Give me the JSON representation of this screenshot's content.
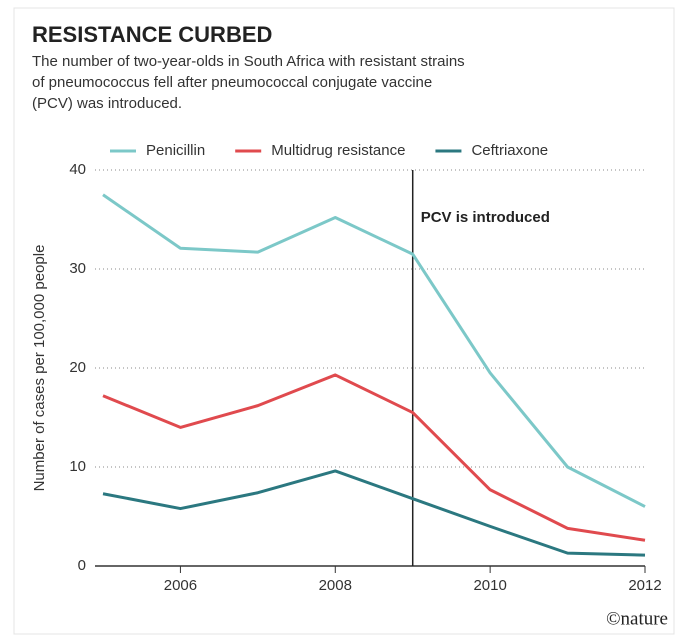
{
  "chart_data": {
    "type": "line",
    "title": "RESISTANCE CURBED",
    "subtitle": [
      "The number of two-year-olds in South Africa with resistant strains",
      "of pneumococcus fell after pneumococcal conjugate vaccine",
      "(PCV) was introduced."
    ],
    "y_label": "Number of cases per 100,000 people",
    "x": [
      2005,
      2006,
      2007,
      2008,
      2009,
      2010,
      2011,
      2012
    ],
    "xlim": [
      2005,
      2012
    ],
    "xticks": [
      2006,
      2008,
      2010,
      2012
    ],
    "ylim": [
      0,
      40
    ],
    "yticks": [
      0,
      10,
      20,
      30,
      40
    ],
    "grid": true,
    "series": [
      {
        "name": "Penicillin",
        "color": "#7cc8c8",
        "values": [
          37.5,
          32.1,
          31.7,
          35.2,
          31.5,
          19.5,
          10,
          6
        ]
      },
      {
        "name": "Multidrug resistance",
        "color": "#e04a4e",
        "values": [
          17.2,
          14,
          16.2,
          19.3,
          15.5,
          7.7,
          3.8,
          2.6
        ]
      },
      {
        "name": "Ceftriaxone",
        "color": "#2b7880",
        "values": [
          7.3,
          5.8,
          7.4,
          9.6,
          6.8,
          4,
          1.3,
          1.1
        ]
      }
    ],
    "annotation": {
      "text": "PCV is introduced",
      "x": 2009
    },
    "source": "©nature"
  }
}
